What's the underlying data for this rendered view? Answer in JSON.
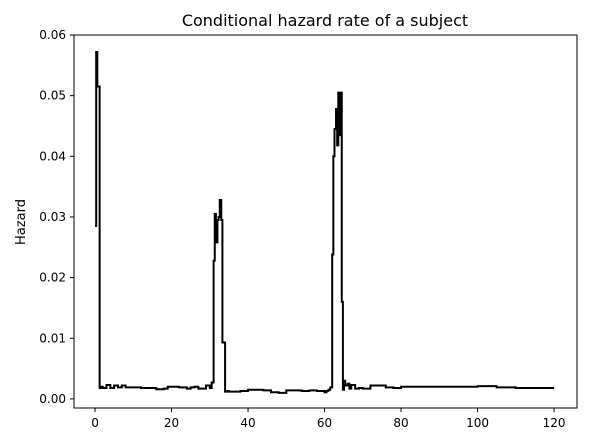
{
  "chart_data": {
    "type": "line",
    "title": "Conditional hazard rate of a subject",
    "xlabel": "",
    "ylabel": "Hazard",
    "xlim": [
      -5.5,
      126
    ],
    "ylim": [
      -0.0015,
      0.06
    ],
    "xticks": [
      0,
      20,
      40,
      60,
      80,
      100,
      120
    ],
    "xtick_labels": [
      "0",
      "20",
      "40",
      "60",
      "80",
      "100",
      "120"
    ],
    "yticks": [
      0.0,
      0.01,
      0.02,
      0.03,
      0.04,
      0.05,
      0.06
    ],
    "ytick_labels": [
      "0.00",
      "0.01",
      "0.02",
      "0.03",
      "0.04",
      "0.05",
      "0.06"
    ],
    "grid": false,
    "line_color": "#000000",
    "series": [
      {
        "x": [
          0,
          0.3,
          0.6,
          0.8,
          1.2,
          1.5,
          2,
          3,
          4,
          5,
          6,
          7,
          8,
          9,
          10,
          12,
          14,
          16,
          18,
          19,
          20,
          22,
          24,
          25,
          26,
          27,
          28,
          29,
          30,
          30.5,
          31,
          31.3,
          31.6,
          32,
          32.3,
          32.6,
          33,
          33.3,
          33.6,
          34,
          34.3,
          34.6,
          35,
          36,
          38,
          40,
          42,
          44,
          46,
          48,
          50,
          52,
          54,
          56,
          58,
          60,
          60.5,
          61,
          61.5,
          62,
          62.3,
          62.6,
          63,
          63.3,
          63.6,
          63.9,
          64.2,
          64.5,
          64.8,
          65.1,
          65.4,
          65.7,
          66,
          66.5,
          67,
          68,
          69,
          70,
          72,
          74,
          76,
          78,
          80,
          85,
          90,
          95,
          100,
          105,
          110,
          115,
          120
        ],
        "values": [
          0.0285,
          0.0572,
          0.0515,
          0.0515,
          0.0018,
          0.002,
          0.0018,
          0.0023,
          0.0018,
          0.0022,
          0.0019,
          0.0022,
          0.0019,
          0.0019,
          0.0019,
          0.0018,
          0.0018,
          0.0016,
          0.0017,
          0.002,
          0.002,
          0.0019,
          0.0017,
          0.0019,
          0.002,
          0.0017,
          0.0017,
          0.0022,
          0.0018,
          0.0027,
          0.0228,
          0.0305,
          0.0258,
          0.0295,
          0.03,
          0.0328,
          0.0295,
          0.0093,
          0.0093,
          0.0012,
          0.0012,
          0.0013,
          0.0012,
          0.0012,
          0.0013,
          0.0015,
          0.0015,
          0.0014,
          0.0011,
          0.001,
          0.0014,
          0.0014,
          0.0013,
          0.0014,
          0.0013,
          0.0011,
          0.0013,
          0.0015,
          0.0019,
          0.0238,
          0.04,
          0.0445,
          0.0478,
          0.0418,
          0.0505,
          0.0435,
          0.0505,
          0.016,
          0.0015,
          0.003,
          0.0022,
          0.0022,
          0.0025,
          0.0017,
          0.0023,
          0.0017,
          0.0018,
          0.0017,
          0.0022,
          0.0022,
          0.0019,
          0.0018,
          0.002,
          0.002,
          0.002,
          0.002,
          0.0021,
          0.0019,
          0.0018,
          0.0018,
          0.0018
        ]
      }
    ]
  }
}
